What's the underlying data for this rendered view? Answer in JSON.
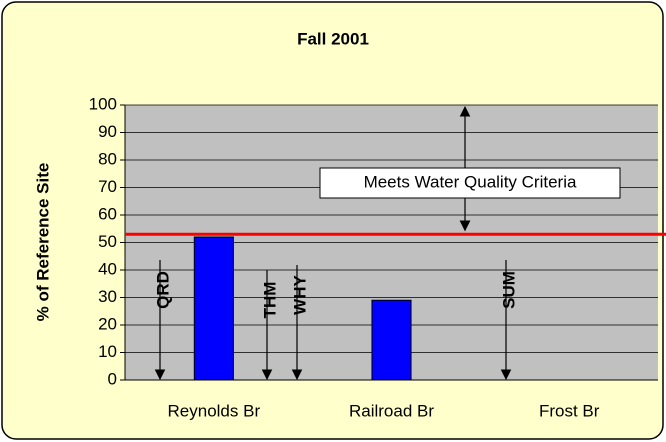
{
  "chart_data": {
    "type": "bar",
    "title": "Fall 2001",
    "y_label": "% of Reference Site",
    "categories": [
      "Reynolds Br",
      "Railroad Br",
      "Frost Br"
    ],
    "values": [
      52,
      29,
      null
    ],
    "color": "#0000ff",
    "ylim": [
      0,
      100
    ],
    "yticks": [
      0,
      10,
      20,
      30,
      40,
      50,
      60,
      70,
      80,
      90,
      100
    ],
    "grid": true,
    "threshold": {
      "value": 53,
      "color": "#ff0000",
      "label": "Meets Water Quality Criteria"
    },
    "annotations": [
      "QRD",
      "THM",
      "WHY",
      "SUM"
    ]
  }
}
